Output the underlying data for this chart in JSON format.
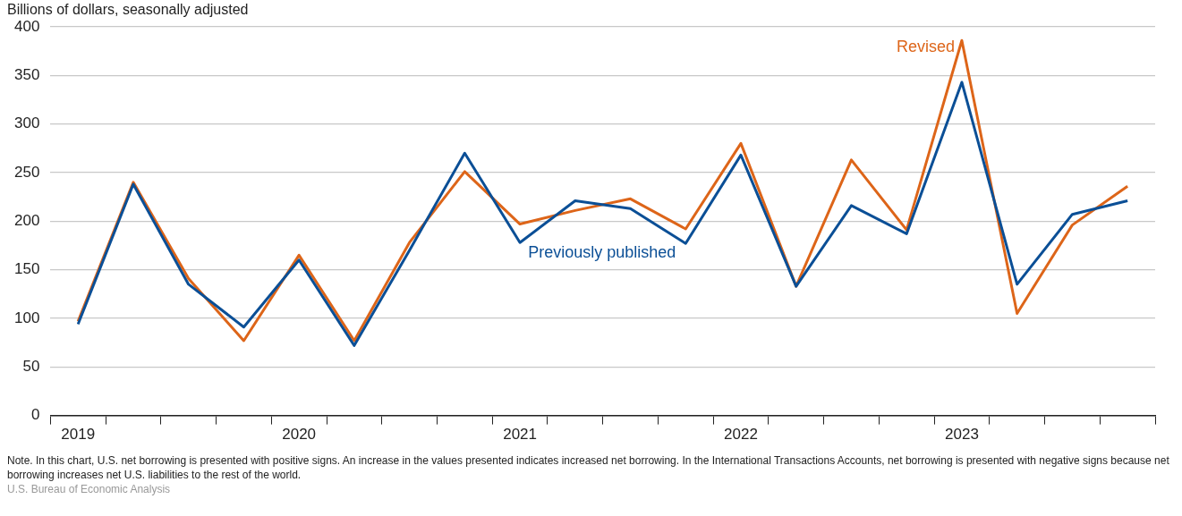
{
  "chart_data": {
    "type": "line",
    "ylabel": "Billions of dollars, seasonally adjusted",
    "categories": [
      "2019",
      null,
      null,
      null,
      "2020",
      null,
      null,
      null,
      "2021",
      null,
      null,
      null,
      "2022",
      null,
      null,
      null,
      "2023",
      null,
      null,
      null
    ],
    "series": [
      {
        "name": "Previously published",
        "color": "#0b4f96",
        "values": [
          94,
          238,
          135,
          91,
          160,
          72,
          170,
          270,
          178,
          221,
          213,
          177,
          268,
          133,
          216,
          187,
          343,
          135,
          207,
          221
        ]
      },
      {
        "name": "Revised",
        "color": "#dd6519",
        "values": [
          97,
          240,
          141,
          77,
          165,
          77,
          178,
          251,
          197,
          211,
          223,
          192,
          280,
          133,
          263,
          191,
          386,
          105,
          196,
          236
        ]
      }
    ],
    "ylim": [
      0,
      400
    ],
    "yticks": [
      0,
      50,
      100,
      150,
      200,
      250,
      300,
      350,
      400
    ],
    "grid": "y",
    "legend": false,
    "marker": "none",
    "line_style": "solid",
    "annotations": [
      "Note. In this chart, U.S. net borrowing is presented with positive signs. An increase in the values presented indicates increased net borrowing. In the International Transactions Accounts, net borrowing is presented with negative signs because net borrowing increases net U.S. liabilities to the rest of the world.",
      "U.S. Bureau of Economic Analysis"
    ]
  }
}
